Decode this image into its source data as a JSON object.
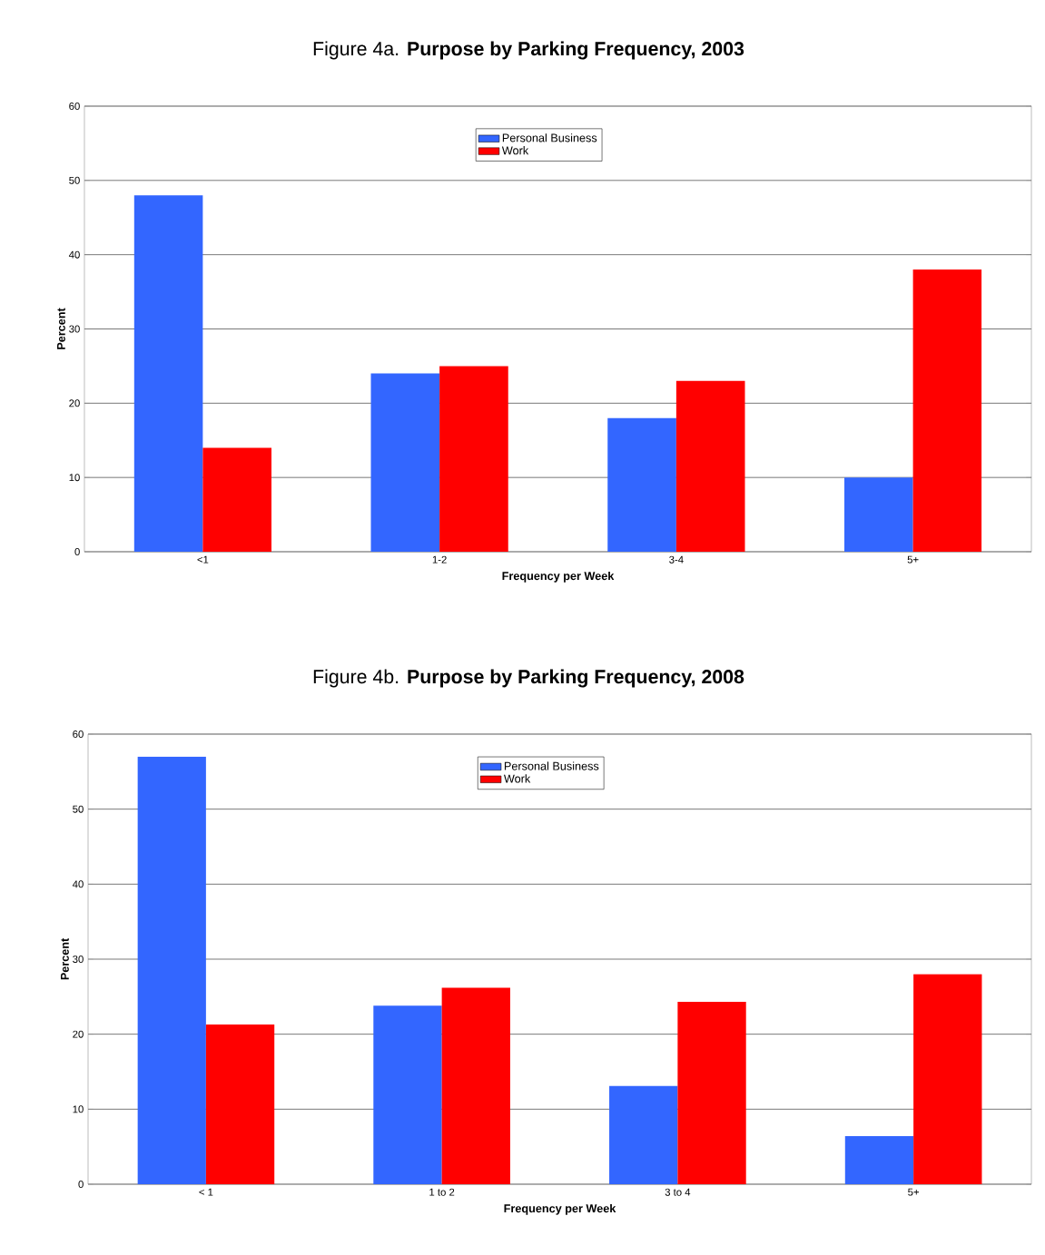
{
  "chart_data": [
    {
      "type": "bar",
      "title": "Figure 4a.  **Purpose by Parking Frequency, 2003**",
      "xlabel": "Frequency per Week",
      "ylabel": "Percent",
      "categories": [
        "<1",
        "1-2",
        "3-4",
        "5+"
      ],
      "series": [
        {
          "name": "Personal Business",
          "color": "#3366ff",
          "values": [
            48,
            24,
            18,
            10
          ]
        },
        {
          "name": "Work",
          "color": "#ff0000",
          "values": [
            14,
            25,
            23,
            38
          ]
        }
      ],
      "ylim": [
        0,
        60
      ],
      "yticks": [
        0,
        10,
        20,
        30,
        40,
        50,
        60
      ],
      "grid": "y",
      "legend": "top"
    },
    {
      "type": "bar",
      "title": "Figure 4b.  **Purpose by Parking Frequency, 2008**",
      "xlabel": "Frequency per Week",
      "ylabel": "Percent",
      "categories": [
        "< 1",
        "1 to 2",
        "3 to 4",
        "5+"
      ],
      "series": [
        {
          "name": "Personal Business",
          "color": "#3366ff",
          "values": [
            57,
            23.8,
            13.1,
            6.4
          ]
        },
        {
          "name": "Work",
          "color": "#ff0000",
          "values": [
            21.3,
            26.2,
            24.3,
            28
          ]
        }
      ],
      "ylim": [
        0,
        60
      ],
      "yticks": [
        0,
        10,
        20,
        30,
        40,
        50,
        60
      ],
      "grid": "y",
      "legend": "top"
    }
  ]
}
